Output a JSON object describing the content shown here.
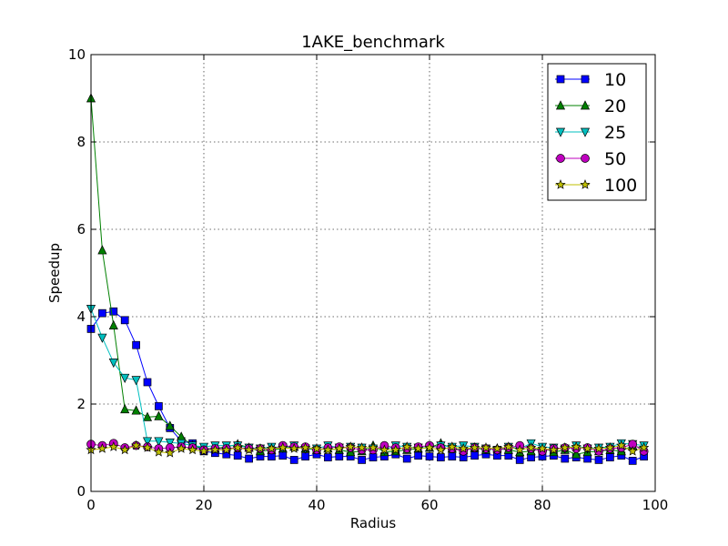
{
  "chart_data": {
    "type": "line",
    "title": "1AKE_benchmark",
    "xlabel": "Radius",
    "ylabel": "Speedup",
    "xlim": [
      0,
      100
    ],
    "ylim": [
      0,
      10
    ],
    "xticks": [
      "0",
      "20",
      "40",
      "60",
      "80",
      "100"
    ],
    "yticks": [
      "0",
      "2",
      "4",
      "6",
      "8",
      "10"
    ],
    "grid": true,
    "legend_position": "top-right",
    "x": [
      0,
      2,
      4,
      6,
      8,
      10,
      12,
      14,
      16,
      18,
      20,
      22,
      24,
      26,
      28,
      30,
      32,
      34,
      36,
      38,
      40,
      42,
      44,
      46,
      48,
      50,
      52,
      54,
      56,
      58,
      60,
      62,
      64,
      66,
      68,
      70,
      72,
      74,
      76,
      78,
      80,
      82,
      84,
      86,
      88,
      90,
      92,
      94,
      96,
      98
    ],
    "series": [
      {
        "name": "10",
        "color": "#0000ff",
        "marker": "square",
        "values": [
          3.72,
          4.08,
          4.12,
          3.92,
          3.35,
          2.5,
          1.95,
          1.45,
          1.15,
          1.1,
          0.92,
          0.88,
          0.85,
          0.82,
          0.75,
          0.8,
          0.8,
          0.82,
          0.72,
          0.8,
          0.85,
          0.78,
          0.8,
          0.8,
          0.72,
          0.78,
          0.8,
          0.85,
          0.75,
          0.82,
          0.8,
          0.78,
          0.8,
          0.78,
          0.82,
          0.85,
          0.82,
          0.82,
          0.72,
          0.78,
          0.8,
          0.82,
          0.75,
          0.78,
          0.75,
          0.72,
          0.78,
          0.82,
          0.7,
          0.8
        ]
      },
      {
        "name": "20",
        "color": "#008000",
        "marker": "triangle-up",
        "values": [
          9.0,
          5.52,
          3.8,
          1.88,
          1.85,
          1.7,
          1.72,
          1.5,
          1.25,
          1.05,
          0.98,
          0.98,
          1.02,
          1.08,
          1.0,
          0.92,
          0.95,
          0.98,
          1.02,
          0.98,
          0.95,
          0.98,
          0.95,
          0.9,
          0.92,
          1.05,
          0.9,
          0.92,
          0.95,
          0.98,
          1.0,
          1.1,
          0.98,
          0.95,
          1.0,
          0.95,
          0.98,
          0.95,
          0.9,
          0.92,
          1.0,
          0.9,
          0.95,
          0.85,
          0.9,
          0.92,
          0.95,
          0.92,
          1.05,
          0.98
        ]
      },
      {
        "name": "25",
        "color": "#00bfbf",
        "marker": "triangle-down",
        "values": [
          4.18,
          3.52,
          2.95,
          2.6,
          2.55,
          1.15,
          1.15,
          1.12,
          1.1,
          1.05,
          1.02,
          1.05,
          1.05,
          1.05,
          1.0,
          0.98,
          1.02,
          1.0,
          1.05,
          0.98,
          0.98,
          1.05,
          1.0,
          1.02,
          1.0,
          0.98,
          0.95,
          1.05,
          1.02,
          1.0,
          1.0,
          1.05,
          1.02,
          1.05,
          1.02,
          0.98,
          0.95,
          1.02,
          0.98,
          1.1,
          1.02,
          1.0,
          0.98,
          1.05,
          0.98,
          1.0,
          1.02,
          1.1,
          1.08,
          1.05
        ]
      },
      {
        "name": "50",
        "color": "#bf00bf",
        "marker": "circle",
        "values": [
          1.08,
          1.05,
          1.1,
          1.0,
          1.05,
          1.02,
          0.98,
          1.0,
          1.02,
          1.0,
          0.95,
          0.98,
          0.98,
          1.0,
          0.98,
          0.98,
          0.95,
          1.05,
          1.02,
          1.02,
          0.95,
          1.0,
          1.02,
          1.0,
          0.95,
          0.95,
          1.05,
          1.0,
          0.98,
          1.02,
          1.05,
          1.0,
          0.98,
          0.92,
          1.0,
          0.98,
          0.95,
          1.0,
          1.05,
          0.98,
          0.92,
          0.98,
          1.0,
          0.98,
          1.0,
          0.92,
          0.98,
          1.0,
          1.08,
          0.92
        ]
      },
      {
        "name": "100",
        "color": "#bfbf00",
        "marker": "star",
        "values": [
          0.95,
          0.98,
          1.02,
          0.95,
          1.05,
          1.0,
          0.9,
          0.88,
          0.98,
          0.95,
          0.92,
          0.95,
          0.95,
          1.0,
          0.95,
          0.98,
          0.98,
          1.0,
          0.98,
          1.0,
          0.98,
          0.95,
          0.98,
          1.02,
          1.0,
          1.0,
          0.95,
          0.95,
          1.02,
          0.98,
          1.0,
          0.95,
          1.02,
          0.98,
          1.0,
          1.0,
          0.98,
          1.02,
          0.95,
          1.0,
          0.98,
          0.95,
          1.0,
          1.02,
          0.98,
          0.98,
          1.0,
          1.05,
          0.92,
          1.0
        ]
      }
    ]
  }
}
